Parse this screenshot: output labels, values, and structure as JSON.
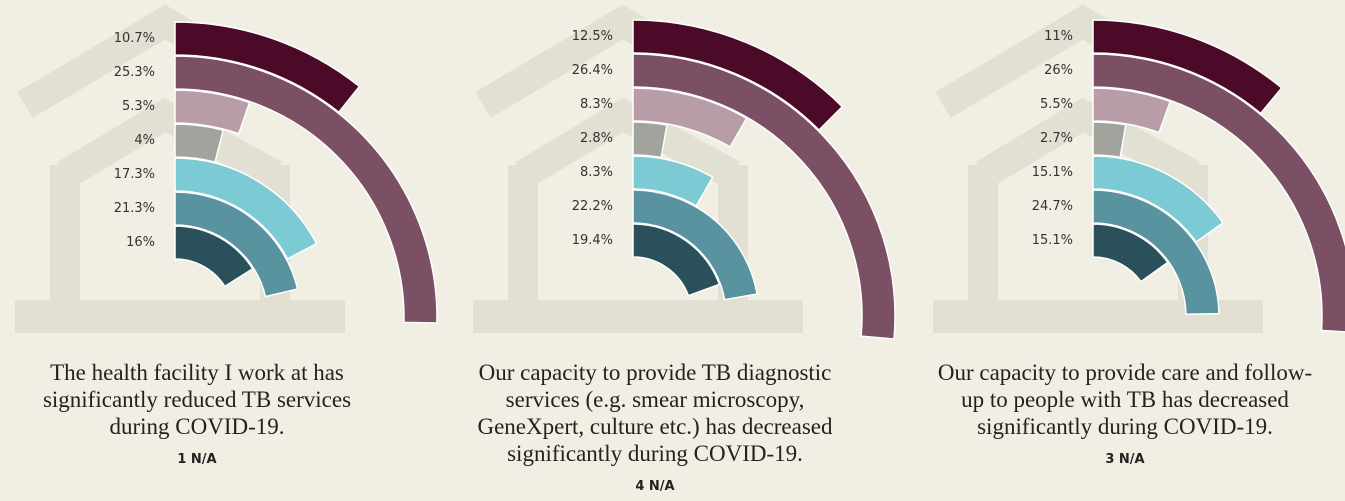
{
  "chart_data": [
    {
      "type": "radial_bar",
      "values": [
        10.7,
        25.3,
        5.3,
        4,
        17.3,
        21.3,
        16
      ],
      "value_labels": [
        "10.7%",
        "25.3%",
        "5.3%",
        "4%",
        "17.3%",
        "21.3%",
        "16%"
      ],
      "colors": [
        "#4a0a28",
        "#7b4f64",
        "#b89ca8",
        "#a0a49c",
        "#7ccad3",
        "#5a93a0",
        "#2a505c"
      ],
      "caption": [
        "The health facility I work at has",
        "significantly reduced TB services",
        "during COVID-19."
      ],
      "footnote": "1 N/A"
    },
    {
      "type": "radial_bar",
      "values": [
        12.5,
        26.4,
        8.3,
        2.8,
        8.3,
        22.2,
        19.4
      ],
      "value_labels": [
        "12.5%",
        "26.4%",
        "8.3%",
        "2.8%",
        "8.3%",
        "22.2%",
        "19.4%"
      ],
      "colors": [
        "#4a0a28",
        "#7b4f64",
        "#b89ca8",
        "#a0a49c",
        "#7ccad3",
        "#5a93a0",
        "#2a505c"
      ],
      "caption": [
        "Our capacity to provide TB diagnostic",
        "services (e.g. smear microscopy,",
        "GeneXpert, culture etc.) has decreased",
        "significantly during COVID-19."
      ],
      "footnote": "4 N/A"
    },
    {
      "type": "radial_bar",
      "values": [
        11,
        26,
        5.5,
        2.7,
        15.1,
        24.7,
        15.1
      ],
      "value_labels": [
        "11%",
        "26%",
        "5.5%",
        "2.7%",
        "15.1%",
        "24.7%",
        "15.1%"
      ],
      "colors": [
        "#4a0a28",
        "#7b4f64",
        "#b89ca8",
        "#a0a49c",
        "#7ccad3",
        "#5a93a0",
        "#2a505c"
      ],
      "caption": [
        "Our capacity to provide care and follow-",
        "up to people with TB has decreased",
        "significantly during COVID-19."
      ],
      "footnote": "3 N/A"
    }
  ]
}
